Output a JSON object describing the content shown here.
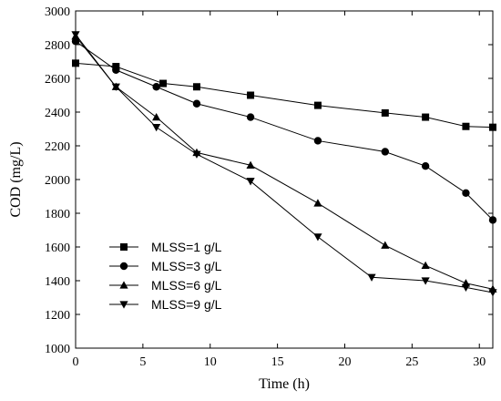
{
  "chart_data": {
    "type": "line",
    "title": "",
    "xlabel": "Time (h)",
    "ylabel": "COD (mg/L)",
    "xlim": [
      0,
      31
    ],
    "ylim": [
      1000,
      3000
    ],
    "xticks": [
      0,
      5,
      10,
      15,
      20,
      25,
      30
    ],
    "yticks": [
      1000,
      1200,
      1400,
      1600,
      1800,
      2000,
      2200,
      2400,
      2600,
      2800,
      3000
    ],
    "grid": false,
    "legend_position": "bottom-left",
    "series": [
      {
        "name": "MLSS=1 g/L",
        "marker": "square",
        "x": [
          0,
          3,
          6.5,
          9,
          13,
          18,
          23,
          26,
          29,
          31
        ],
        "y": [
          2690,
          2670,
          2570,
          2550,
          2500,
          2440,
          2395,
          2370,
          2315,
          2310
        ]
      },
      {
        "name": "MLSS=3 g/L",
        "marker": "circle",
        "x": [
          0,
          3,
          6,
          9,
          13,
          18,
          23,
          26,
          29,
          31
        ],
        "y": [
          2820,
          2650,
          2550,
          2450,
          2370,
          2230,
          2165,
          2080,
          1920,
          1760
        ]
      },
      {
        "name": "MLSS=6 g/L",
        "marker": "triangle-up",
        "x": [
          0,
          3,
          6,
          9,
          13,
          18,
          23,
          26,
          29,
          31
        ],
        "y": [
          2850,
          2550,
          2370,
          2160,
          2085,
          1860,
          1610,
          1490,
          1385,
          1350
        ]
      },
      {
        "name": "MLSS=9 g/L",
        "marker": "triangle-down",
        "x": [
          0,
          3,
          6,
          9,
          13,
          18,
          22,
          26,
          29,
          31
        ],
        "y": [
          2860,
          2550,
          2310,
          2150,
          1990,
          1660,
          1420,
          1400,
          1360,
          1330
        ]
      }
    ]
  }
}
